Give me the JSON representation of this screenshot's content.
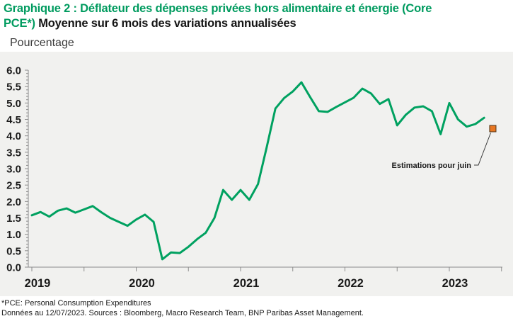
{
  "title": {
    "line1_green": "Graphique 2 : Déflateur des dépenses privées hors alimentaire et énergie (Core",
    "line2_green": "PCE*)",
    "line2_black": " Moyenne sur 6 mois des variations annualisées"
  },
  "y_axis_title": "Pourcentage",
  "annotation": {
    "label": "Estimations pour juin"
  },
  "footnote_line1": "*PCE: Personal Consumption Expenditures",
  "footnote_line2": "Données au 12/07/2023. Sources : Bloomberg, Macro Research Team, BNP Paribas Asset Management.",
  "colors": {
    "title_green": "#009B5F",
    "line_green": "#00A160",
    "estimate_orange": "#E87722",
    "estimate_border": "#4D3319",
    "panel_bg": "#F1F1EF",
    "axis_gray": "#8C8C8C",
    "text_dark": "#1A1A1A"
  },
  "chart_data": {
    "type": "line",
    "title": "Déflateur des dépenses privées hors alimentaire et énergie (Core PCE) — Moyenne sur 6 mois des variations annualisées",
    "xlabel": "",
    "ylabel": "Pourcentage",
    "ylim": [
      0,
      6
    ],
    "ytick_labeled_step": 0.5,
    "ytick_minor_step": 0.1,
    "x_tick_years": [
      "2019",
      "2020",
      "2021",
      "2022",
      "2023"
    ],
    "x_minor_tick_interval_years": 0.5,
    "x_range_years": [
      2019.0,
      2023.5
    ],
    "grid": false,
    "legend": "none",
    "start_month": "2019-01",
    "frequency": "monthly",
    "series": [
      {
        "name": "Core PCE, moyenne 6 mois des variations annualisées (%)",
        "color": "#00A160",
        "values": [
          1.58,
          1.68,
          1.54,
          1.72,
          1.79,
          1.66,
          1.76,
          1.86,
          1.67,
          1.5,
          1.38,
          1.26,
          1.45,
          1.6,
          1.38,
          0.24,
          0.45,
          0.43,
          0.62,
          0.85,
          1.05,
          1.5,
          2.35,
          2.05,
          2.35,
          2.05,
          2.53,
          3.65,
          4.83,
          5.15,
          5.35,
          5.63,
          5.18,
          4.75,
          4.73,
          4.88,
          5.02,
          5.16,
          5.44,
          5.29,
          4.97,
          5.12,
          4.32,
          4.64,
          4.86,
          4.9,
          4.75,
          4.05,
          5.0,
          4.5,
          4.28,
          4.36,
          4.55
        ]
      }
    ],
    "estimate_point": {
      "label": "Estimations pour juin",
      "month": "2023-06",
      "value": 4.22,
      "marker": "square",
      "color": "#E87722"
    }
  }
}
